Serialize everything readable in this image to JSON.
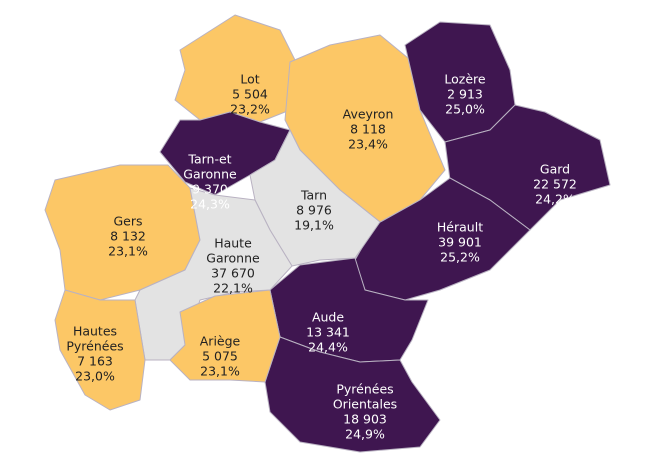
{
  "regions": [
    {
      "name": [
        "Lot"
      ],
      "count": "5 504",
      "share": "23,2%",
      "color": "#fcc766",
      "text_color": "#222222"
    },
    {
      "name": [
        "Aveyron"
      ],
      "count": "8 118",
      "share": "23,4%",
      "color": "#fcc766",
      "text_color": "#222222"
    },
    {
      "name": [
        "Lozère"
      ],
      "count": "2 913",
      "share": "25,0%",
      "color": "#3f1650",
      "text_color": "#ffffff"
    },
    {
      "name": [
        "Gard"
      ],
      "count": "22 572",
      "share": "24,2%",
      "color": "#3f1650",
      "text_color": "#ffffff"
    },
    {
      "name": [
        "Hérault"
      ],
      "count": "39 901",
      "share": "25,2%",
      "color": "#3f1650",
      "text_color": "#ffffff"
    },
    {
      "name": [
        "Aude"
      ],
      "count": "13 341",
      "share": "24,4%",
      "color": "#3f1650",
      "text_color": "#ffffff"
    },
    {
      "name": [
        "Pyrénées",
        "Orientales"
      ],
      "count": "18 903",
      "share": "24,9%",
      "color": "#3f1650",
      "text_color": "#ffffff"
    },
    {
      "name": [
        "Tarn-et",
        "Garonne"
      ],
      "count": "9 370",
      "share": "24,3%",
      "color": "#3f1650",
      "text_color": "#ffffff"
    },
    {
      "name": [
        "Tarn"
      ],
      "count": "8 976",
      "share": "19,1%",
      "color": "#e3e3e3",
      "text_color": "#222222"
    },
    {
      "name": [
        "Gers"
      ],
      "count": "8 132",
      "share": "23,1%",
      "color": "#fcc766",
      "text_color": "#222222"
    },
    {
      "name": [
        "Haute",
        "Garonne"
      ],
      "count": "37 670",
      "share": "22,1%",
      "color": "#e3e3e3",
      "text_color": "#222222"
    },
    {
      "name": [
        "Ariège"
      ],
      "count": "5 075",
      "share": "23,1%",
      "color": "#fcc766",
      "text_color": "#222222"
    },
    {
      "name": [
        "Hautes",
        "Pyrénées"
      ],
      "count": "7 163",
      "share": "23,0%",
      "color": "#fcc766",
      "text_color": "#222222"
    }
  ]
}
